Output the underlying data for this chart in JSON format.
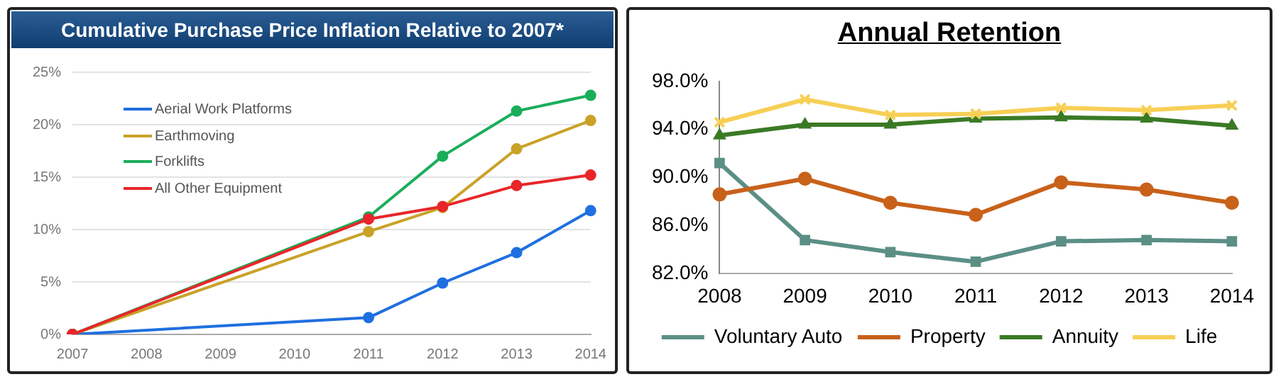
{
  "chart_data": [
    {
      "type": "line",
      "title": "Cumulative Purchase Price Inflation Relative to 2007*",
      "categories": [
        "2007",
        "2008",
        "2009",
        "2010",
        "2011",
        "2012",
        "2013",
        "2014"
      ],
      "series": [
        {
          "name": "Aerial Work Platforms",
          "color": "#1f6fe0",
          "values": [
            0,
            null,
            null,
            null,
            1.6,
            4.9,
            7.8,
            11.8
          ]
        },
        {
          "name": "Earthmoving",
          "color": "#c9a227",
          "values": [
            0,
            null,
            null,
            null,
            9.8,
            12.1,
            17.7,
            20.4
          ]
        },
        {
          "name": "Forklifts",
          "color": "#1aae5a",
          "values": [
            0,
            null,
            null,
            null,
            11.2,
            17.0,
            21.3,
            22.8
          ]
        },
        {
          "name": "All Other Equipment",
          "color": "#e8262a",
          "values": [
            0,
            null,
            null,
            null,
            11.0,
            12.2,
            14.2,
            15.2
          ]
        }
      ],
      "ylim": [
        0,
        25
      ],
      "yticks": [
        {
          "value": 0,
          "label": "0%"
        },
        {
          "value": 5,
          "label": "5%"
        },
        {
          "value": 10,
          "label": "10%"
        },
        {
          "value": 15,
          "label": "15%"
        },
        {
          "value": 20,
          "label": "20%"
        },
        {
          "value": 25,
          "label": "25%"
        }
      ],
      "grid": "y",
      "legend": "top left",
      "marker": "circle",
      "line_style": "solid"
    },
    {
      "type": "line",
      "title": "Annual Retention",
      "categories": [
        "2008",
        "2009",
        "2010",
        "2011",
        "2012",
        "2013",
        "2014"
      ],
      "series": [
        {
          "name": "Voluntary Auto",
          "color": "#5b8f86",
          "marker": "square",
          "values": [
            91.2,
            84.8,
            83.8,
            83.0,
            84.7,
            84.8,
            84.7
          ]
        },
        {
          "name": "Property",
          "color": "#c8611a",
          "marker": "circle",
          "values": [
            88.6,
            89.9,
            87.9,
            86.9,
            89.6,
            89.0,
            87.9
          ]
        },
        {
          "name": "Annuity",
          "color": "#3a7a25",
          "marker": "triangle",
          "values": [
            93.5,
            94.4,
            94.4,
            94.9,
            95.0,
            94.9,
            94.3
          ]
        },
        {
          "name": "Life",
          "color": "#f7cf55",
          "marker": "cross",
          "values": [
            94.6,
            96.5,
            95.2,
            95.3,
            95.8,
            95.6,
            96.0
          ]
        }
      ],
      "ylim": [
        82,
        98
      ],
      "yticks": [
        {
          "value": 82,
          "label": "82.0%"
        },
        {
          "value": 86,
          "label": "86.0%"
        },
        {
          "value": 90,
          "label": "90.0%"
        },
        {
          "value": 94,
          "label": "94.0%"
        },
        {
          "value": 98,
          "label": "98.0%"
        }
      ],
      "grid": false,
      "legend": "bottom",
      "line_style": "solid"
    }
  ]
}
